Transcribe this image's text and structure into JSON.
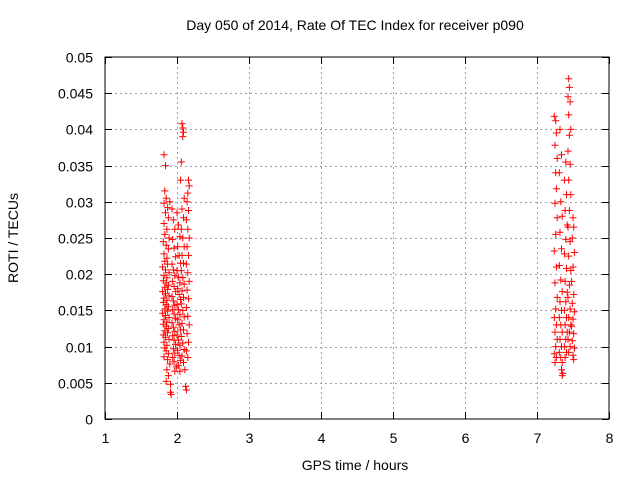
{
  "chart_data": {
    "type": "scatter",
    "title": "Day 050 of 2014, Rate Of TEC Index for receiver p090",
    "xlabel": "GPS time / hours",
    "ylabel": "ROTI / TECUs",
    "xlim": [
      1,
      8
    ],
    "ylim": [
      0,
      0.05
    ],
    "xticks": [
      1,
      2,
      3,
      4,
      5,
      6,
      7,
      8
    ],
    "xtick_labels": [
      "1",
      "2",
      "3",
      "4",
      "5",
      "6",
      "7",
      "8"
    ],
    "yticks": [
      0,
      0.005,
      0.01,
      0.015,
      0.02,
      0.025,
      0.03,
      0.035,
      0.04,
      0.045,
      0.05
    ],
    "ytick_labels": [
      "0",
      "0.005",
      "0.01",
      "0.015",
      "0.02",
      "0.025",
      "0.03",
      "0.035",
      "0.04",
      "0.045",
      "0.05"
    ],
    "grid": true,
    "marker": "+",
    "marker_color": "#ff0000",
    "series": [
      {
        "name": "ROTI",
        "points": [
          [
            1.82,
            0.0365
          ],
          [
            1.84,
            0.035
          ],
          [
            1.83,
            0.0315
          ],
          [
            1.85,
            0.0305
          ],
          [
            1.82,
            0.0298
          ],
          [
            1.87,
            0.0292
          ],
          [
            1.84,
            0.0285
          ],
          [
            1.9,
            0.03
          ],
          [
            1.88,
            0.0278
          ],
          [
            1.82,
            0.027
          ],
          [
            1.86,
            0.0262
          ],
          [
            1.83,
            0.0255
          ],
          [
            1.89,
            0.025
          ],
          [
            1.81,
            0.0245
          ],
          [
            1.85,
            0.024
          ],
          [
            1.88,
            0.0235
          ],
          [
            1.82,
            0.0228
          ],
          [
            1.86,
            0.0222
          ],
          [
            1.83,
            0.0218
          ],
          [
            1.87,
            0.0214
          ],
          [
            1.8,
            0.021
          ],
          [
            1.84,
            0.0206
          ],
          [
            1.89,
            0.0202
          ],
          [
            1.82,
            0.0198
          ],
          [
            1.86,
            0.0195
          ],
          [
            1.81,
            0.0191
          ],
          [
            1.85,
            0.0188
          ],
          [
            1.88,
            0.0185
          ],
          [
            1.83,
            0.0182
          ],
          [
            1.87,
            0.0179
          ],
          [
            1.8,
            0.0176
          ],
          [
            1.84,
            0.0173
          ],
          [
            1.89,
            0.017
          ],
          [
            1.82,
            0.0167
          ],
          [
            1.86,
            0.0164
          ],
          [
            1.81,
            0.0161
          ],
          [
            1.85,
            0.0158
          ],
          [
            1.88,
            0.0155
          ],
          [
            1.83,
            0.0152
          ],
          [
            1.87,
            0.0149
          ],
          [
            1.8,
            0.0146
          ],
          [
            1.84,
            0.0143
          ],
          [
            1.89,
            0.014
          ],
          [
            1.82,
            0.0137
          ],
          [
            1.86,
            0.0134
          ],
          [
            1.81,
            0.0131
          ],
          [
            1.85,
            0.0128
          ],
          [
            1.88,
            0.0125
          ],
          [
            1.83,
            0.0122
          ],
          [
            1.87,
            0.0119
          ],
          [
            1.81,
            0.0116
          ],
          [
            1.84,
            0.0113
          ],
          [
            1.89,
            0.011
          ],
          [
            1.82,
            0.0106
          ],
          [
            1.86,
            0.0102
          ],
          [
            1.83,
            0.0098
          ],
          [
            1.85,
            0.0094
          ],
          [
            1.88,
            0.009
          ],
          [
            1.82,
            0.0086
          ],
          [
            1.87,
            0.0082
          ],
          [
            1.9,
            0.0076
          ],
          [
            1.86,
            0.0068
          ],
          [
            1.88,
            0.006
          ],
          [
            1.85,
            0.0052
          ],
          [
            1.91,
            0.0048
          ],
          [
            1.92,
            0.0034
          ],
          [
            1.91,
            0.0037
          ],
          [
            1.93,
            0.029
          ],
          [
            1.95,
            0.0275
          ],
          [
            1.97,
            0.0262
          ],
          [
            1.94,
            0.0248
          ],
          [
            1.96,
            0.0236
          ],
          [
            1.98,
            0.0224
          ],
          [
            1.93,
            0.0214
          ],
          [
            1.95,
            0.0206
          ],
          [
            1.97,
            0.0198
          ],
          [
            1.94,
            0.019
          ],
          [
            1.96,
            0.0183
          ],
          [
            1.98,
            0.0176
          ],
          [
            1.93,
            0.0169
          ],
          [
            1.95,
            0.0163
          ],
          [
            1.97,
            0.0157
          ],
          [
            1.94,
            0.0151
          ],
          [
            1.96,
            0.0145
          ],
          [
            1.98,
            0.0139
          ],
          [
            1.93,
            0.0133
          ],
          [
            1.95,
            0.0127
          ],
          [
            1.97,
            0.0121
          ],
          [
            1.94,
            0.0115
          ],
          [
            1.96,
            0.0109
          ],
          [
            1.98,
            0.0103
          ],
          [
            1.95,
            0.0097
          ],
          [
            1.97,
            0.0091
          ],
          [
            1.94,
            0.0085
          ],
          [
            1.96,
            0.0079
          ],
          [
            1.99,
            0.0072
          ],
          [
            1.97,
            0.0066
          ],
          [
            2.0,
            0.0285
          ],
          [
            2.02,
            0.0268
          ],
          [
            2.04,
            0.0252
          ],
          [
            2.01,
            0.0238
          ],
          [
            2.03,
            0.0226
          ],
          [
            2.05,
            0.0215
          ],
          [
            2.0,
            0.0205
          ],
          [
            2.02,
            0.0196
          ],
          [
            2.04,
            0.0188
          ],
          [
            2.01,
            0.018
          ],
          [
            2.03,
            0.0172
          ],
          [
            2.05,
            0.0165
          ],
          [
            2.0,
            0.0158
          ],
          [
            2.02,
            0.0151
          ],
          [
            2.04,
            0.0144
          ],
          [
            2.01,
            0.0137
          ],
          [
            2.03,
            0.013
          ],
          [
            2.05,
            0.0123
          ],
          [
            2.0,
            0.0116
          ],
          [
            2.02,
            0.0109
          ],
          [
            2.04,
            0.0102
          ],
          [
            2.01,
            0.0095
          ],
          [
            2.03,
            0.0088
          ],
          [
            2.05,
            0.0081
          ],
          [
            2.02,
            0.0074
          ],
          [
            2.04,
            0.0066
          ],
          [
            2.07,
            0.0408
          ],
          [
            2.08,
            0.0402
          ],
          [
            2.09,
            0.0396
          ],
          [
            2.08,
            0.039
          ],
          [
            2.06,
            0.0355
          ],
          [
            2.05,
            0.033
          ],
          [
            2.1,
            0.0305
          ],
          [
            2.07,
            0.029
          ],
          [
            2.09,
            0.0278
          ],
          [
            2.06,
            0.0262
          ],
          [
            2.08,
            0.025
          ],
          [
            2.1,
            0.0238
          ],
          [
            2.07,
            0.0226
          ],
          [
            2.09,
            0.0215
          ],
          [
            2.06,
            0.0205
          ],
          [
            2.08,
            0.0195
          ],
          [
            2.1,
            0.0186
          ],
          [
            2.07,
            0.0177
          ],
          [
            2.09,
            0.0168
          ],
          [
            2.06,
            0.0159
          ],
          [
            2.08,
            0.015
          ],
          [
            2.1,
            0.0141
          ],
          [
            2.07,
            0.0132
          ],
          [
            2.09,
            0.0123
          ],
          [
            2.06,
            0.0114
          ],
          [
            2.08,
            0.0105
          ],
          [
            2.1,
            0.0096
          ],
          [
            2.07,
            0.0087
          ],
          [
            2.09,
            0.0078
          ],
          [
            2.11,
            0.0068
          ],
          [
            2.12,
            0.0045
          ],
          [
            2.13,
            0.004
          ],
          [
            2.16,
            0.033
          ],
          [
            2.17,
            0.0322
          ],
          [
            2.15,
            0.0312
          ],
          [
            2.14,
            0.03
          ],
          [
            2.16,
            0.0288
          ],
          [
            2.13,
            0.0275
          ],
          [
            2.15,
            0.0262
          ],
          [
            2.17,
            0.025
          ],
          [
            2.14,
            0.0238
          ],
          [
            2.16,
            0.0226
          ],
          [
            2.13,
            0.0214
          ],
          [
            2.15,
            0.0202
          ],
          [
            2.17,
            0.019
          ],
          [
            2.14,
            0.0178
          ],
          [
            2.16,
            0.0166
          ],
          [
            2.13,
            0.0154
          ],
          [
            2.15,
            0.0142
          ],
          [
            2.17,
            0.013
          ],
          [
            2.14,
            0.0118
          ],
          [
            2.16,
            0.0106
          ],
          [
            2.13,
            0.0094
          ],
          [
            2.15,
            0.0085
          ],
          [
            7.24,
            0.0418
          ],
          [
            7.26,
            0.0412
          ],
          [
            7.27,
            0.0395
          ],
          [
            7.25,
            0.0378
          ],
          [
            7.28,
            0.036
          ],
          [
            7.26,
            0.034
          ],
          [
            7.27,
            0.0318
          ],
          [
            7.25,
            0.0298
          ],
          [
            7.28,
            0.0278
          ],
          [
            7.26,
            0.0255
          ],
          [
            7.24,
            0.0232
          ],
          [
            7.27,
            0.021
          ],
          [
            7.25,
            0.0188
          ],
          [
            7.28,
            0.0168
          ],
          [
            7.26,
            0.0152
          ],
          [
            7.24,
            0.014
          ],
          [
            7.27,
            0.013
          ],
          [
            7.25,
            0.012
          ],
          [
            7.28,
            0.011
          ],
          [
            7.26,
            0.01
          ],
          [
            7.24,
            0.009
          ],
          [
            7.27,
            0.0085
          ],
          [
            7.25,
            0.0078
          ],
          [
            7.32,
            0.04
          ],
          [
            7.34,
            0.0365
          ],
          [
            7.31,
            0.034
          ],
          [
            7.33,
            0.03
          ],
          [
            7.35,
            0.028
          ],
          [
            7.32,
            0.0258
          ],
          [
            7.34,
            0.0235
          ],
          [
            7.31,
            0.0212
          ],
          [
            7.33,
            0.0192
          ],
          [
            7.35,
            0.0176
          ],
          [
            7.32,
            0.0162
          ],
          [
            7.34,
            0.015
          ],
          [
            7.31,
            0.014
          ],
          [
            7.33,
            0.013
          ],
          [
            7.35,
            0.012
          ],
          [
            7.32,
            0.011
          ],
          [
            7.34,
            0.01
          ],
          [
            7.31,
            0.0092
          ],
          [
            7.33,
            0.0085
          ],
          [
            7.35,
            0.0078
          ],
          [
            7.34,
            0.0068
          ],
          [
            7.36,
            0.0063
          ],
          [
            7.35,
            0.006
          ],
          [
            7.4,
            0.0355
          ],
          [
            7.38,
            0.033
          ],
          [
            7.41,
            0.031
          ],
          [
            7.39,
            0.0288
          ],
          [
            7.42,
            0.0268
          ],
          [
            7.4,
            0.0248
          ],
          [
            7.38,
            0.0228
          ],
          [
            7.41,
            0.0208
          ],
          [
            7.39,
            0.019
          ],
          [
            7.42,
            0.0175
          ],
          [
            7.4,
            0.0162
          ],
          [
            7.38,
            0.015
          ],
          [
            7.41,
            0.014
          ],
          [
            7.39,
            0.013
          ],
          [
            7.42,
            0.012
          ],
          [
            7.4,
            0.011
          ],
          [
            7.38,
            0.01
          ],
          [
            7.41,
            0.0092
          ],
          [
            7.39,
            0.0085
          ],
          [
            7.44,
            0.047
          ],
          [
            7.45,
            0.0458
          ],
          [
            7.43,
            0.0445
          ],
          [
            7.46,
            0.0438
          ],
          [
            7.44,
            0.042
          ],
          [
            7.47,
            0.04
          ],
          [
            7.45,
            0.0392
          ],
          [
            7.43,
            0.037
          ],
          [
            7.46,
            0.0352
          ],
          [
            7.44,
            0.033
          ],
          [
            7.47,
            0.031
          ],
          [
            7.45,
            0.0288
          ],
          [
            7.43,
            0.0265
          ],
          [
            7.46,
            0.0245
          ],
          [
            7.44,
            0.0225
          ],
          [
            7.47,
            0.0205
          ],
          [
            7.45,
            0.0185
          ],
          [
            7.43,
            0.0168
          ],
          [
            7.46,
            0.0152
          ],
          [
            7.44,
            0.014
          ],
          [
            7.47,
            0.013
          ],
          [
            7.45,
            0.012
          ],
          [
            7.43,
            0.011
          ],
          [
            7.46,
            0.01
          ],
          [
            7.44,
            0.0092
          ],
          [
            7.5,
            0.0278
          ],
          [
            7.51,
            0.0265
          ],
          [
            7.49,
            0.025
          ],
          [
            7.52,
            0.023
          ],
          [
            7.5,
            0.021
          ],
          [
            7.48,
            0.019
          ],
          [
            7.51,
            0.0172
          ],
          [
            7.49,
            0.016
          ],
          [
            7.52,
            0.0148
          ],
          [
            7.5,
            0.0138
          ],
          [
            7.48,
            0.0128
          ],
          [
            7.51,
            0.0118
          ],
          [
            7.49,
            0.0108
          ],
          [
            7.52,
            0.0098
          ],
          [
            7.5,
            0.0088
          ],
          [
            7.51,
            0.0082
          ]
        ]
      }
    ]
  }
}
